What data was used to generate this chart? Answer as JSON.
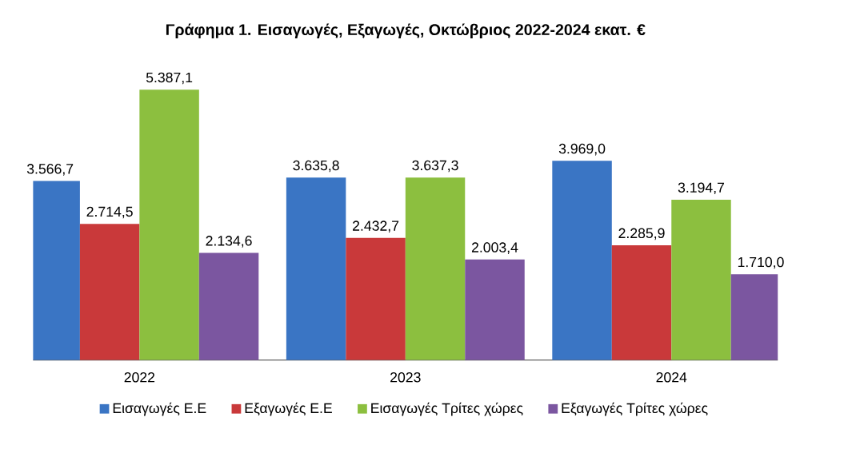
{
  "chart_data": {
    "type": "bar",
    "title": "Γράφημα 1. Εισαγωγές, Εξαγωγές, Οκτώβριος 2022-2024 εκατ. €",
    "categories": [
      "2022",
      "2023",
      "2024"
    ],
    "series": [
      {
        "name": "Εισαγωγές Ε.Ε",
        "color": "#3a75c4",
        "values": [
          3566.7,
          3635.8,
          3969.0
        ],
        "value_labels": [
          "3.566,7",
          "3.635,8",
          "3.969,0"
        ]
      },
      {
        "name": "Εξαγωγές  Ε.Ε",
        "color": "#c9393a",
        "values": [
          2714.5,
          2432.7,
          2285.9
        ],
        "value_labels": [
          "2.714,5",
          "2.432,7",
          "2.285,9"
        ]
      },
      {
        "name": "Εισαγωγές Τρίτες χώρες",
        "color": "#8cbf3f",
        "values": [
          5387.1,
          3637.3,
          3194.7
        ],
        "value_labels": [
          "5.387,1",
          "3.637,3",
          "3.194,7"
        ]
      },
      {
        "name": "Εξαγωγές Τρίτες χώρες",
        "color": "#7b56a0",
        "values": [
          2134.6,
          2003.4,
          1710.0
        ],
        "value_labels": [
          "2.134,6",
          "2.003,4",
          "1.710,0"
        ]
      }
    ],
    "legend": "bottom"
  }
}
